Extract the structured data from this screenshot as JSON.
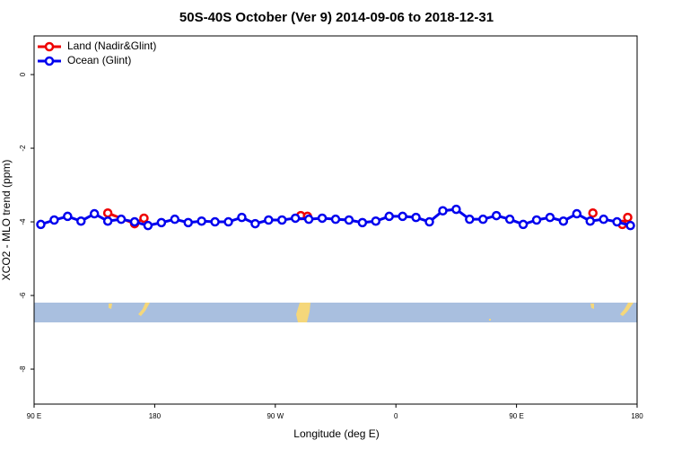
{
  "chart_data": {
    "type": "line",
    "title": "50S-40S October (Ver 9)   2014-09-06 to 2018-12-31",
    "x_label": "Longitude (deg E)",
    "y_label": "XCO2 - MLO trend (ppm)",
    "xlim": [
      90,
      540
    ],
    "ylim": [
      -8.95,
      1.05
    ],
    "xticks": [
      {
        "value": 90,
        "label": "90 E"
      },
      {
        "value": 180,
        "label": "180"
      },
      {
        "value": 270,
        "label": "90 W"
      },
      {
        "value": 360,
        "label": "0"
      },
      {
        "value": 450,
        "label": "90 E"
      },
      {
        "value": 540,
        "label": "180"
      }
    ],
    "yticks": [
      0,
      -2,
      -4,
      -6,
      -8
    ],
    "legend": "top-left",
    "series": [
      {
        "name": "Land (Nadir&Glint)",
        "color": "#ee0000",
        "x": [
          145,
          165,
          172,
          230,
          289,
          294,
          400,
          507,
          520,
          529,
          533
        ],
        "values": [
          -3.76,
          -4.05,
          -3.9,
          null,
          -3.83,
          -3.85,
          null,
          -3.76,
          null,
          -4.07,
          -3.88
        ]
      },
      {
        "name": "Ocean (Glint)",
        "color": "#0000ee",
        "x": [
          95,
          105,
          115,
          125,
          135,
          145,
          155,
          165,
          175,
          185,
          195,
          205,
          215,
          225,
          235,
          245,
          255,
          265,
          275,
          285,
          295,
          305,
          315,
          325,
          335,
          345,
          355,
          365,
          375,
          385,
          395,
          405,
          415,
          425,
          435,
          445,
          455,
          465,
          475,
          485,
          495,
          505,
          515,
          525,
          535
        ],
        "values": [
          -4.07,
          -3.95,
          -3.85,
          -3.98,
          -3.78,
          -3.98,
          -3.93,
          -4.0,
          -4.1,
          -4.02,
          -3.93,
          -4.02,
          -3.98,
          -4.0,
          -4.0,
          -3.88,
          -4.05,
          -3.95,
          -3.95,
          -3.9,
          -3.93,
          -3.9,
          -3.93,
          -3.95,
          -4.02,
          -3.98,
          -3.85,
          -3.85,
          -3.88,
          -4.0,
          -3.7,
          -3.66,
          -3.93,
          -3.93,
          -3.83,
          -3.93,
          -4.07,
          -3.95,
          -3.88,
          -3.98,
          -3.78,
          -3.98,
          -3.93,
          -4.0,
          -4.1
        ]
      }
    ]
  }
}
